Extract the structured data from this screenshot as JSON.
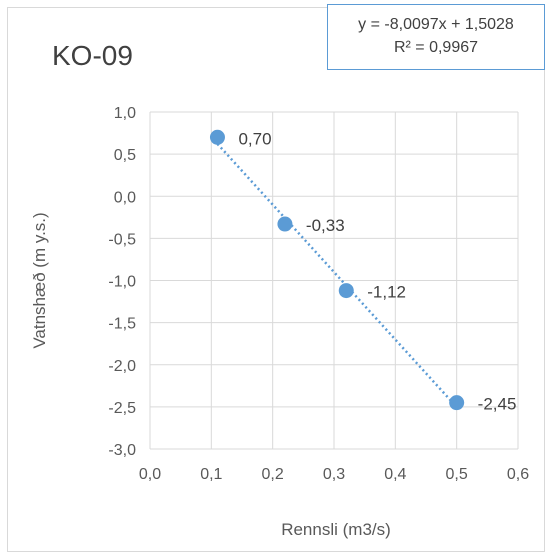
{
  "chart_data": {
    "type": "scatter",
    "title": "KO-09",
    "xlabel": "Rennsli (m3/s)",
    "ylabel": "Vatnshæð (m y.s.)",
    "xlim": [
      0.0,
      0.6
    ],
    "ylim": [
      -3.0,
      1.0
    ],
    "x_ticks": [
      "0,0",
      "0,1",
      "0,2",
      "0,3",
      "0,4",
      "0,5",
      "0,6"
    ],
    "y_ticks": [
      "1,0",
      "0,5",
      "0,0",
      "-0,5",
      "-1,0",
      "-1,5",
      "-2,0",
      "-2,5",
      "-3,0"
    ],
    "grid": true,
    "points": [
      {
        "x": 0.11,
        "y": 0.7,
        "label": "0,70"
      },
      {
        "x": 0.22,
        "y": -0.33,
        "label": "-0,33"
      },
      {
        "x": 0.32,
        "y": -1.12,
        "label": "-1,12"
      },
      {
        "x": 0.5,
        "y": -2.45,
        "label": "-2,45"
      }
    ],
    "trendline": {
      "type": "linear",
      "slope": -8.0097,
      "intercept": 1.5028,
      "equation": "y = -8,0097x + 1,5028",
      "r2": "R² = 0,9967",
      "style": "dotted"
    },
    "colors": {
      "marker": "#5b9bd5",
      "trendline": "#5b9bd5",
      "grid": "#d9d9d9",
      "text": "#595959"
    }
  }
}
